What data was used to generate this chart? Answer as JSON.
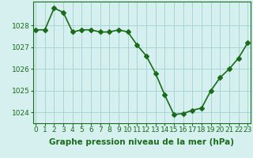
{
  "hours": [
    0,
    1,
    2,
    3,
    4,
    5,
    6,
    7,
    8,
    9,
    10,
    11,
    12,
    13,
    14,
    15,
    16,
    17,
    18,
    19,
    20,
    21,
    22,
    23
  ],
  "pressure": [
    1027.8,
    1027.8,
    1028.8,
    1028.6,
    1027.7,
    1027.8,
    1027.8,
    1027.7,
    1027.7,
    1027.8,
    1027.7,
    1027.1,
    1026.6,
    1025.8,
    1024.8,
    1023.9,
    1023.95,
    1024.1,
    1024.2,
    1025.0,
    1025.6,
    1026.0,
    1026.5,
    1027.2
  ],
  "line_color": "#1a6b1a",
  "marker": "D",
  "markersize": 3,
  "linewidth": 1.2,
  "bg_color": "#d6f0f0",
  "grid_color": "#aad4d4",
  "yticks": [
    1024,
    1025,
    1026,
    1027,
    1028
  ],
  "xticks": [
    0,
    1,
    2,
    3,
    4,
    5,
    6,
    7,
    8,
    9,
    10,
    11,
    12,
    13,
    14,
    15,
    16,
    17,
    18,
    19,
    20,
    21,
    22,
    23
  ],
  "ylim": [
    1023.5,
    1029.1
  ],
  "xlim": [
    -0.3,
    23.3
  ],
  "xlabel": "Graphe pression niveau de la mer (hPa)",
  "xlabel_fontsize": 7.5,
  "tick_fontsize": 6.5,
  "tick_color": "#1a6b1a",
  "label_color": "#1a6b1a",
  "axis_color": "#1a6b1a"
}
